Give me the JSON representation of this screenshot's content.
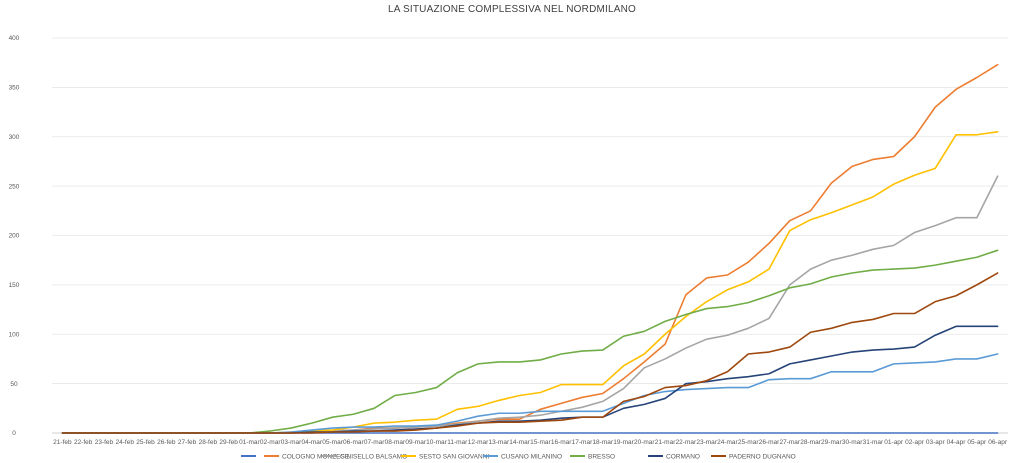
{
  "chart_data": {
    "type": "line",
    "title": "LA SITUAZIONE COMPLESSIVA NEL NORDMILANO",
    "xlabel": "",
    "ylabel": "",
    "ylim": [
      0,
      400
    ],
    "yticks": [
      0,
      50,
      100,
      150,
      200,
      250,
      300,
      350,
      400
    ],
    "grid": "horizontal",
    "legend_position": "bottom",
    "categories": [
      "21-feb",
      "22-feb",
      "23-feb",
      "24-feb",
      "25-feb",
      "26-feb",
      "27-feb",
      "28-feb",
      "29-feb",
      "01-mar",
      "02-mar",
      "03-mar",
      "04-mar",
      "05-mar",
      "06-mar",
      "07-mar",
      "08-mar",
      "09-mar",
      "10-mar",
      "11-mar",
      "12-mar",
      "13-mar",
      "14-mar",
      "15-mar",
      "16-mar",
      "17-mar",
      "18-mar",
      "19-mar",
      "20-mar",
      "21-mar",
      "22-mar",
      "23-mar",
      "24-mar",
      "25-mar",
      "26-mar",
      "27-mar",
      "28-mar",
      "29-mar",
      "30-mar",
      "31-mar",
      "01-apr",
      "02-apr",
      "03-apr",
      "04-apr",
      "05-apr",
      "06-apr"
    ],
    "series": [
      {
        "name": "",
        "color": "#4472C4",
        "values": [
          0,
          0,
          0,
          0,
          0,
          0,
          0,
          0,
          0,
          0,
          0,
          0,
          0,
          0,
          0,
          0,
          0,
          0,
          0,
          0,
          0,
          0,
          0,
          0,
          0,
          0,
          0,
          0,
          0,
          0,
          0,
          0,
          0,
          0,
          0,
          0,
          0,
          0,
          0,
          0,
          0,
          0,
          0,
          0,
          0,
          0
        ]
      },
      {
        "name": "COLOGNO MONZESE",
        "color": "#ED7D31",
        "values": [
          0,
          0,
          0,
          0,
          0,
          0,
          0,
          0,
          0,
          0,
          0,
          0,
          1,
          2,
          3,
          5,
          5,
          6,
          7,
          10,
          12,
          14,
          14,
          24,
          30,
          36,
          40,
          55,
          72,
          90,
          140,
          157,
          160,
          173,
          192,
          215,
          225,
          253,
          270,
          277,
          280,
          300,
          330,
          348,
          360,
          373
        ]
      },
      {
        "name": "CINISELLO BALSAMO",
        "color": "#A5A5A5",
        "values": [
          0,
          0,
          0,
          0,
          0,
          0,
          0,
          0,
          0,
          0,
          0,
          0,
          1,
          2,
          3,
          4,
          5,
          6,
          7,
          9,
          12,
          15,
          16,
          18,
          22,
          26,
          32,
          45,
          66,
          75,
          86,
          95,
          99,
          106,
          116,
          150,
          166,
          175,
          180,
          186,
          190,
          203,
          210,
          218,
          218,
          260
        ]
      },
      {
        "name": "SESTO SAN GIOVANNI",
        "color": "#FFC000",
        "values": [
          0,
          0,
          0,
          0,
          0,
          0,
          0,
          0,
          0,
          0,
          0,
          1,
          2,
          3,
          6,
          10,
          11,
          13,
          14,
          24,
          27,
          33,
          38,
          41,
          49,
          49,
          49,
          68,
          80,
          100,
          118,
          133,
          145,
          153,
          166,
          205,
          216,
          223,
          231,
          239,
          252,
          261,
          268,
          302,
          302,
          305
        ]
      },
      {
        "name": "CUSANO MILANINO",
        "color": "#5B9BD5",
        "values": [
          0,
          0,
          0,
          0,
          0,
          0,
          0,
          0,
          0,
          0,
          0,
          1,
          3,
          5,
          6,
          6,
          7,
          7,
          8,
          12,
          17,
          20,
          20,
          22,
          22,
          22,
          22,
          30,
          38,
          42,
          44,
          45,
          46,
          46,
          54,
          55,
          55,
          62,
          62,
          62,
          70,
          71,
          72,
          75,
          75,
          80
        ]
      },
      {
        "name": "BRESSO",
        "color": "#70AD47",
        "values": [
          0,
          0,
          0,
          0,
          0,
          0,
          0,
          0,
          0,
          0,
          2,
          5,
          10,
          16,
          19,
          25,
          38,
          41,
          46,
          61,
          70,
          72,
          72,
          74,
          80,
          83,
          84,
          98,
          103,
          113,
          120,
          126,
          128,
          132,
          139,
          147,
          151,
          158,
          162,
          165,
          166,
          167,
          170,
          174,
          178,
          185
        ]
      },
      {
        "name": "CORMANO",
        "color": "#264478",
        "values": [
          0,
          0,
          0,
          0,
          0,
          0,
          0,
          0,
          0,
          0,
          0,
          0,
          1,
          1,
          2,
          2,
          3,
          4,
          5,
          8,
          10,
          12,
          12,
          13,
          15,
          16,
          16,
          25,
          29,
          35,
          50,
          52,
          55,
          57,
          60,
          70,
          74,
          78,
          82,
          84,
          85,
          87,
          99,
          108,
          108,
          108
        ]
      },
      {
        "name": "PADERNO DUGNANO",
        "color": "#9E480E",
        "values": [
          0,
          0,
          0,
          0,
          0,
          0,
          0,
          0,
          0,
          0,
          0,
          0,
          0,
          1,
          1,
          2,
          2,
          3,
          5,
          7,
          10,
          11,
          11,
          12,
          13,
          16,
          16,
          32,
          37,
          46,
          48,
          53,
          62,
          80,
          82,
          87,
          102,
          106,
          112,
          115,
          121,
          121,
          133,
          139,
          150,
          162
        ]
      }
    ]
  }
}
